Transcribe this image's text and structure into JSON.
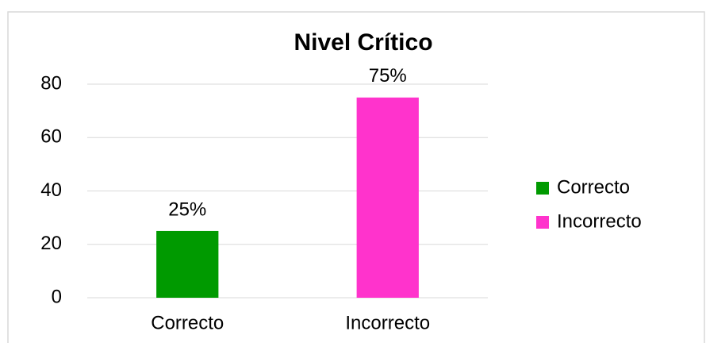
{
  "chart_data": {
    "type": "bar",
    "title": "Nivel Crítico",
    "categories": [
      "Correcto",
      "Incorrecto"
    ],
    "values": [
      25,
      75
    ],
    "value_labels": [
      "25%",
      "75%"
    ],
    "colors": [
      "#009a00",
      "#ff33cc"
    ],
    "ylim": [
      0,
      80
    ],
    "yticks": [
      0,
      20,
      40,
      60,
      80
    ],
    "grid": true,
    "legend": "right"
  }
}
